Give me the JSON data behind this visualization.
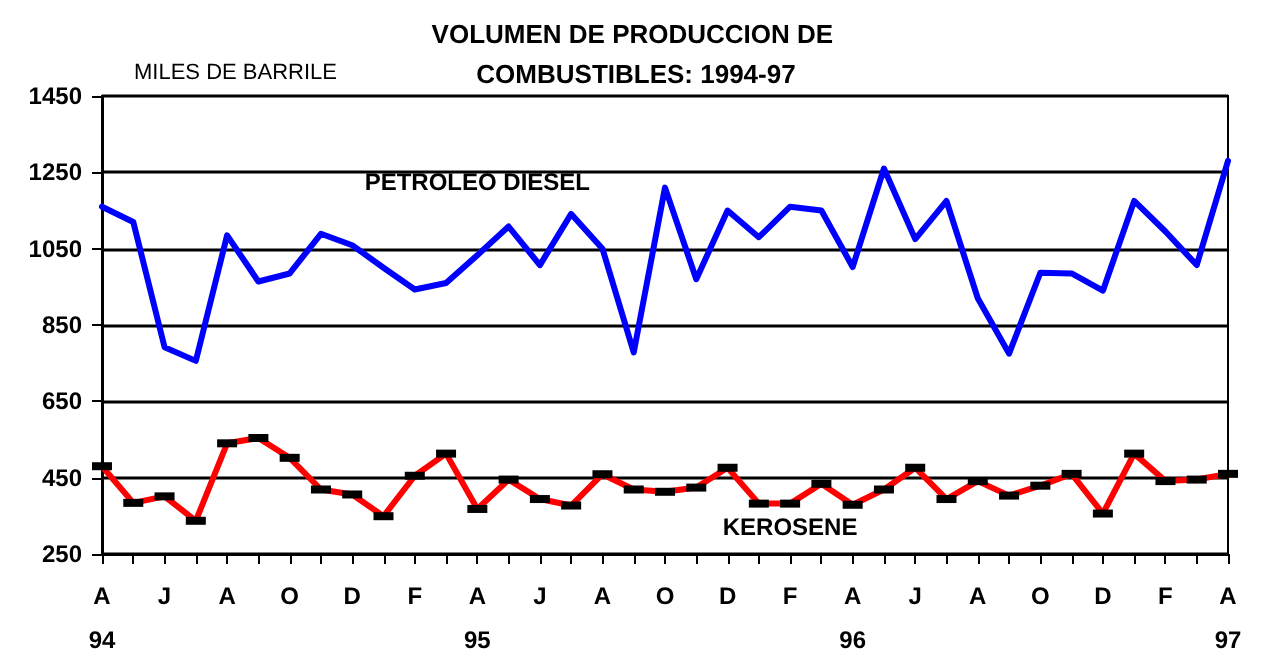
{
  "chart_data": {
    "type": "line",
    "title": "VOLUMEN DE PRODUCCION DE COMBUSTIBLES: 1994-97",
    "ylabel": "MILES DE BARRILE",
    "categories": [
      "A\n94",
      null,
      "J",
      null,
      "A",
      null,
      "O",
      null,
      "D",
      null,
      "F",
      null,
      "A\n95",
      null,
      "J",
      null,
      "A",
      null,
      "O",
      null,
      "D",
      null,
      "F",
      null,
      "A\n96",
      null,
      "J",
      null,
      "A",
      null,
      "O",
      null,
      "D",
      null,
      "F",
      null,
      "A\n97"
    ],
    "series": [
      {
        "name": "PETROLEO DIESEL",
        "color": "#0000ff",
        "marker": "none",
        "values": [
          1160,
          1120,
          792,
          756,
          1085,
          964,
          985,
          1089,
          1059,
          1000,
          943,
          960,
          1033,
          1108,
          1007,
          1141,
          1050,
          778,
          1210,
          970,
          1150,
          1080,
          1160,
          1150,
          1002,
          1260,
          1075,
          1175,
          920,
          775,
          987,
          985,
          940,
          1175,
          1095,
          1007,
          1280
        ]
      },
      {
        "name": "KEROSENE",
        "color": "#ff0000",
        "marker": "square",
        "values": [
          480,
          384,
          401,
          337,
          540,
          554,
          502,
          419,
          406,
          349,
          455,
          513,
          368,
          445,
          394,
          377,
          459,
          419,
          413,
          424,
          476,
          382,
          382,
          434,
          379,
          419,
          476,
          394,
          441,
          403,
          429,
          460,
          356,
          513,
          441,
          445,
          460
        ]
      }
    ],
    "ylim": [
      250,
      1450
    ],
    "yticks": [
      250,
      450,
      650,
      850,
      1050,
      1250,
      1450
    ],
    "grid": "y",
    "legend": false
  }
}
